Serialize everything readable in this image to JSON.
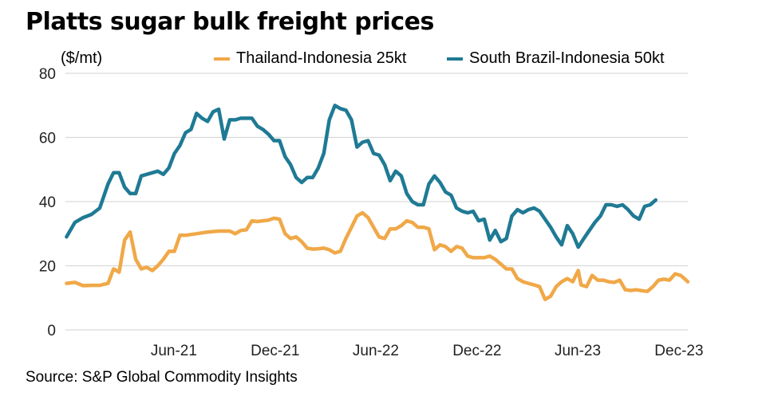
{
  "title": "Platts sugar bulk freight prices",
  "unit_label": "($/mt)",
  "source": "Source: S&P Global Commodity Insights",
  "colors": {
    "thailand": "#f0a848",
    "brazil": "#1f7a94",
    "grid": "#d9d9d9"
  },
  "chart_data": {
    "type": "line",
    "title": "Platts sugar bulk freight prices",
    "ylabel": "($/mt)",
    "xlabel": "",
    "ylim": [
      0,
      80
    ],
    "y_ticks": [
      0,
      20,
      40,
      60,
      80
    ],
    "x_range": [
      "2020-12-01",
      "2023-12-31"
    ],
    "x_ticks": [
      {
        "label": "Jun-21",
        "date": "2021-06-15"
      },
      {
        "label": "Dec-21",
        "date": "2021-12-15"
      },
      {
        "label": "Jun-22",
        "date": "2022-06-15"
      },
      {
        "label": "Dec-22",
        "date": "2022-12-15"
      },
      {
        "label": "Jun-23",
        "date": "2023-06-15"
      },
      {
        "label": "Dec-23",
        "date": "2023-12-15"
      }
    ],
    "grid": "horizontal",
    "legend_position": "top",
    "series": [
      {
        "name": "Thailand-Indonesia 25kt",
        "points": [
          [
            "2020-12-03",
            14.5
          ],
          [
            "2020-12-18",
            14.8
          ],
          [
            "2021-01-02",
            13.8
          ],
          [
            "2021-01-17",
            13.9
          ],
          [
            "2021-02-01",
            13.9
          ],
          [
            "2021-02-16",
            14.5
          ],
          [
            "2021-02-26",
            19.0
          ],
          [
            "2021-03-08",
            18.0
          ],
          [
            "2021-03-18",
            28.0
          ],
          [
            "2021-03-28",
            30.5
          ],
          [
            "2021-04-07",
            22.0
          ],
          [
            "2021-04-17",
            19.0
          ],
          [
            "2021-04-27",
            19.5
          ],
          [
            "2021-05-07",
            18.5
          ],
          [
            "2021-05-17",
            20.0
          ],
          [
            "2021-05-27",
            22.0
          ],
          [
            "2021-06-06",
            24.5
          ],
          [
            "2021-06-16",
            24.5
          ],
          [
            "2021-06-26",
            29.5
          ],
          [
            "2021-07-06",
            29.5
          ],
          [
            "2021-07-26",
            30.0
          ],
          [
            "2021-08-15",
            30.5
          ],
          [
            "2021-09-04",
            30.8
          ],
          [
            "2021-09-24",
            30.8
          ],
          [
            "2021-10-04",
            30.0
          ],
          [
            "2021-10-14",
            31.0
          ],
          [
            "2021-10-24",
            31.2
          ],
          [
            "2021-11-03",
            34.0
          ],
          [
            "2021-11-13",
            33.8
          ],
          [
            "2021-11-23",
            34.0
          ],
          [
            "2021-12-03",
            34.2
          ],
          [
            "2021-12-13",
            34.8
          ],
          [
            "2021-12-23",
            34.5
          ],
          [
            "2022-01-02",
            30.0
          ],
          [
            "2022-01-12",
            28.5
          ],
          [
            "2022-01-22",
            29.0
          ],
          [
            "2022-02-01",
            27.5
          ],
          [
            "2022-02-11",
            25.5
          ],
          [
            "2022-02-21",
            25.2
          ],
          [
            "2022-03-03",
            25.3
          ],
          [
            "2022-03-13",
            25.5
          ],
          [
            "2022-03-23",
            25.0
          ],
          [
            "2022-04-02",
            24.0
          ],
          [
            "2022-04-12",
            24.5
          ],
          [
            "2022-04-22",
            28.5
          ],
          [
            "2022-05-02",
            32.0
          ],
          [
            "2022-05-12",
            35.5
          ],
          [
            "2022-05-22",
            36.5
          ],
          [
            "2022-06-01",
            35.0
          ],
          [
            "2022-06-11",
            32.0
          ],
          [
            "2022-06-21",
            29.0
          ],
          [
            "2022-07-01",
            28.5
          ],
          [
            "2022-07-11",
            31.5
          ],
          [
            "2022-07-21",
            31.5
          ],
          [
            "2022-07-31",
            32.5
          ],
          [
            "2022-08-10",
            34.0
          ],
          [
            "2022-08-20",
            33.5
          ],
          [
            "2022-08-30",
            32.0
          ],
          [
            "2022-09-09",
            32.0
          ],
          [
            "2022-09-19",
            31.5
          ],
          [
            "2022-09-29",
            25.0
          ],
          [
            "2022-10-09",
            26.5
          ],
          [
            "2022-10-19",
            26.0
          ],
          [
            "2022-10-29",
            24.5
          ],
          [
            "2022-11-08",
            26.0
          ],
          [
            "2022-11-18",
            25.5
          ],
          [
            "2022-11-28",
            23.0
          ],
          [
            "2022-12-08",
            22.5
          ],
          [
            "2022-12-28",
            22.5
          ],
          [
            "2023-01-07",
            23.0
          ],
          [
            "2023-01-17",
            22.0
          ],
          [
            "2023-01-27",
            20.5
          ],
          [
            "2023-02-06",
            19.0
          ],
          [
            "2023-02-16",
            19.0
          ],
          [
            "2023-02-26",
            16.0
          ],
          [
            "2023-03-08",
            15.0
          ],
          [
            "2023-03-18",
            14.5
          ],
          [
            "2023-03-28",
            14.0
          ],
          [
            "2023-04-07",
            13.5
          ],
          [
            "2023-04-17",
            9.5
          ],
          [
            "2023-04-27",
            10.5
          ],
          [
            "2023-05-07",
            13.5
          ],
          [
            "2023-05-17",
            15.0
          ],
          [
            "2023-05-27",
            16.0
          ],
          [
            "2023-06-06",
            15.0
          ],
          [
            "2023-06-16",
            18.5
          ],
          [
            "2023-06-21",
            14.0
          ],
          [
            "2023-07-01",
            13.5
          ],
          [
            "2023-07-11",
            17.0
          ],
          [
            "2023-07-21",
            15.5
          ],
          [
            "2023-07-31",
            15.5
          ],
          [
            "2023-08-10",
            15.0
          ],
          [
            "2023-08-20",
            14.8
          ],
          [
            "2023-08-30",
            15.5
          ],
          [
            "2023-09-09",
            12.5
          ],
          [
            "2023-09-19",
            12.3
          ],
          [
            "2023-09-29",
            12.5
          ],
          [
            "2023-10-09",
            12.2
          ],
          [
            "2023-10-19",
            12.0
          ],
          [
            "2023-10-29",
            13.5
          ],
          [
            "2023-11-08",
            15.5
          ],
          [
            "2023-11-18",
            15.8
          ],
          [
            "2023-11-28",
            15.5
          ],
          [
            "2023-12-08",
            17.5
          ],
          [
            "2023-12-18",
            17.0
          ],
          [
            "2023-12-28",
            15.5
          ],
          [
            "2023-12-31",
            15.0
          ]
        ]
      },
      {
        "name": "South Brazil-Indonesia 50kt",
        "points": [
          [
            "2020-12-03",
            29.0
          ],
          [
            "2020-12-18",
            33.5
          ],
          [
            "2021-01-02",
            35.0
          ],
          [
            "2021-01-17",
            36.0
          ],
          [
            "2021-02-01",
            38.0
          ],
          [
            "2021-02-16",
            45.5
          ],
          [
            "2021-02-26",
            49.0
          ],
          [
            "2021-03-08",
            49.0
          ],
          [
            "2021-03-18",
            44.5
          ],
          [
            "2021-03-28",
            42.5
          ],
          [
            "2021-04-07",
            42.5
          ],
          [
            "2021-04-17",
            48.0
          ],
          [
            "2021-04-27",
            48.5
          ],
          [
            "2021-05-07",
            49.0
          ],
          [
            "2021-05-17",
            49.5
          ],
          [
            "2021-05-27",
            48.5
          ],
          [
            "2021-06-06",
            50.5
          ],
          [
            "2021-06-16",
            55.0
          ],
          [
            "2021-06-26",
            57.5
          ],
          [
            "2021-07-06",
            61.5
          ],
          [
            "2021-07-16",
            62.5
          ],
          [
            "2021-07-26",
            67.5
          ],
          [
            "2021-08-05",
            66.0
          ],
          [
            "2021-08-15",
            65.0
          ],
          [
            "2021-08-25",
            68.0
          ],
          [
            "2021-09-04",
            68.8
          ],
          [
            "2021-09-14",
            59.5
          ],
          [
            "2021-09-24",
            65.5
          ],
          [
            "2021-10-04",
            65.5
          ],
          [
            "2021-10-14",
            66.0
          ],
          [
            "2021-10-24",
            66.0
          ],
          [
            "2021-11-03",
            66.0
          ],
          [
            "2021-11-13",
            63.5
          ],
          [
            "2021-11-23",
            62.5
          ],
          [
            "2021-12-03",
            61.0
          ],
          [
            "2021-12-13",
            59.0
          ],
          [
            "2021-12-23",
            59.0
          ],
          [
            "2022-01-02",
            54.0
          ],
          [
            "2022-01-12",
            51.5
          ],
          [
            "2022-01-22",
            47.5
          ],
          [
            "2022-02-01",
            46.0
          ],
          [
            "2022-02-11",
            47.5
          ],
          [
            "2022-02-21",
            47.5
          ],
          [
            "2022-03-03",
            50.5
          ],
          [
            "2022-03-13",
            55.0
          ],
          [
            "2022-03-23",
            65.5
          ],
          [
            "2022-04-02",
            70.0
          ],
          [
            "2022-04-12",
            69.0
          ],
          [
            "2022-04-22",
            68.5
          ],
          [
            "2022-05-02",
            65.5
          ],
          [
            "2022-05-12",
            57.0
          ],
          [
            "2022-05-22",
            58.5
          ],
          [
            "2022-06-01",
            59.0
          ],
          [
            "2022-06-11",
            55.0
          ],
          [
            "2022-06-21",
            54.5
          ],
          [
            "2022-07-01",
            51.5
          ],
          [
            "2022-07-11",
            46.5
          ],
          [
            "2022-07-21",
            49.5
          ],
          [
            "2022-07-31",
            48.0
          ],
          [
            "2022-08-10",
            42.5
          ],
          [
            "2022-08-20",
            40.0
          ],
          [
            "2022-08-30",
            39.0
          ],
          [
            "2022-09-09",
            39.0
          ],
          [
            "2022-09-19",
            45.5
          ],
          [
            "2022-09-29",
            48.0
          ],
          [
            "2022-10-09",
            46.0
          ],
          [
            "2022-10-19",
            43.0
          ],
          [
            "2022-10-29",
            42.0
          ],
          [
            "2022-11-08",
            38.0
          ],
          [
            "2022-11-18",
            37.0
          ],
          [
            "2022-11-28",
            36.5
          ],
          [
            "2022-12-08",
            37.0
          ],
          [
            "2022-12-18",
            34.0
          ],
          [
            "2022-12-28",
            34.5
          ],
          [
            "2023-01-07",
            28.0
          ],
          [
            "2023-01-17",
            31.0
          ],
          [
            "2023-01-27",
            27.5
          ],
          [
            "2023-02-06",
            28.5
          ],
          [
            "2023-02-16",
            35.5
          ],
          [
            "2023-02-26",
            37.5
          ],
          [
            "2023-03-08",
            36.5
          ],
          [
            "2023-03-18",
            37.5
          ],
          [
            "2023-03-28",
            38.0
          ],
          [
            "2023-04-07",
            37.0
          ],
          [
            "2023-04-17",
            34.5
          ],
          [
            "2023-04-27",
            32.0
          ],
          [
            "2023-05-07",
            29.0
          ],
          [
            "2023-05-17",
            26.5
          ],
          [
            "2023-05-27",
            32.5
          ],
          [
            "2023-06-06",
            30.0
          ],
          [
            "2023-06-16",
            25.8
          ],
          [
            "2023-06-26",
            28.5
          ],
          [
            "2023-07-06",
            31.0
          ],
          [
            "2023-07-16",
            33.5
          ],
          [
            "2023-07-26",
            35.5
          ],
          [
            "2023-08-05",
            39.0
          ],
          [
            "2023-08-15",
            39.0
          ],
          [
            "2023-08-25",
            38.5
          ],
          [
            "2023-09-04",
            39.0
          ],
          [
            "2023-09-14",
            37.5
          ],
          [
            "2023-09-24",
            35.5
          ],
          [
            "2023-10-04",
            34.5
          ],
          [
            "2023-10-14",
            38.5
          ],
          [
            "2023-10-24",
            39.0
          ],
          [
            "2023-11-03",
            40.5
          ]
        ]
      }
    ]
  }
}
